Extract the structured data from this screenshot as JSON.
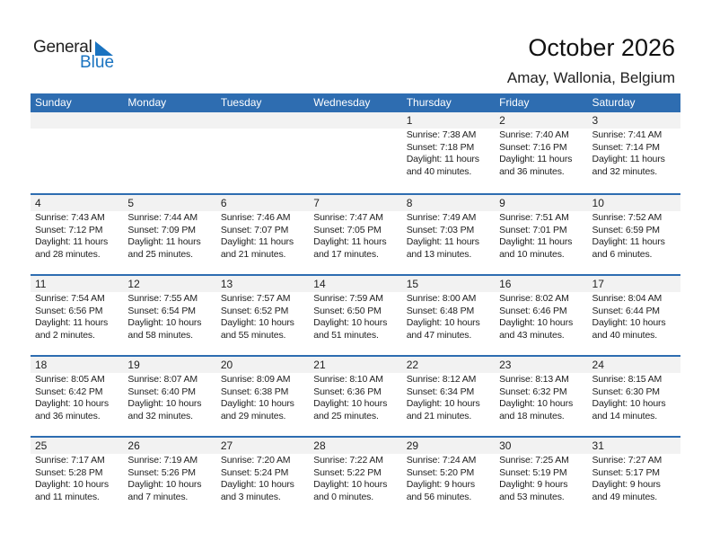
{
  "logo": {
    "general": "General",
    "blue": "Blue"
  },
  "title": "October 2026",
  "location": "Amay, Wallonia, Belgium",
  "colors": {
    "header": "#2e6db1",
    "accent": "#1a73c0",
    "day_row": "#f2f2f2"
  },
  "weekdays": [
    "Sunday",
    "Monday",
    "Tuesday",
    "Wednesday",
    "Thursday",
    "Friday",
    "Saturday"
  ],
  "weeks": [
    [
      null,
      null,
      null,
      null,
      {
        "day": "1",
        "sunrise": "Sunrise: 7:38 AM",
        "sunset": "Sunset: 7:18 PM",
        "daylight1": "Daylight: 11 hours",
        "daylight2": "and 40 minutes."
      },
      {
        "day": "2",
        "sunrise": "Sunrise: 7:40 AM",
        "sunset": "Sunset: 7:16 PM",
        "daylight1": "Daylight: 11 hours",
        "daylight2": "and 36 minutes."
      },
      {
        "day": "3",
        "sunrise": "Sunrise: 7:41 AM",
        "sunset": "Sunset: 7:14 PM",
        "daylight1": "Daylight: 11 hours",
        "daylight2": "and 32 minutes."
      }
    ],
    [
      {
        "day": "4",
        "sunrise": "Sunrise: 7:43 AM",
        "sunset": "Sunset: 7:12 PM",
        "daylight1": "Daylight: 11 hours",
        "daylight2": "and 28 minutes."
      },
      {
        "day": "5",
        "sunrise": "Sunrise: 7:44 AM",
        "sunset": "Sunset: 7:09 PM",
        "daylight1": "Daylight: 11 hours",
        "daylight2": "and 25 minutes."
      },
      {
        "day": "6",
        "sunrise": "Sunrise: 7:46 AM",
        "sunset": "Sunset: 7:07 PM",
        "daylight1": "Daylight: 11 hours",
        "daylight2": "and 21 minutes."
      },
      {
        "day": "7",
        "sunrise": "Sunrise: 7:47 AM",
        "sunset": "Sunset: 7:05 PM",
        "daylight1": "Daylight: 11 hours",
        "daylight2": "and 17 minutes."
      },
      {
        "day": "8",
        "sunrise": "Sunrise: 7:49 AM",
        "sunset": "Sunset: 7:03 PM",
        "daylight1": "Daylight: 11 hours",
        "daylight2": "and 13 minutes."
      },
      {
        "day": "9",
        "sunrise": "Sunrise: 7:51 AM",
        "sunset": "Sunset: 7:01 PM",
        "daylight1": "Daylight: 11 hours",
        "daylight2": "and 10 minutes."
      },
      {
        "day": "10",
        "sunrise": "Sunrise: 7:52 AM",
        "sunset": "Sunset: 6:59 PM",
        "daylight1": "Daylight: 11 hours",
        "daylight2": "and 6 minutes."
      }
    ],
    [
      {
        "day": "11",
        "sunrise": "Sunrise: 7:54 AM",
        "sunset": "Sunset: 6:56 PM",
        "daylight1": "Daylight: 11 hours",
        "daylight2": "and 2 minutes."
      },
      {
        "day": "12",
        "sunrise": "Sunrise: 7:55 AM",
        "sunset": "Sunset: 6:54 PM",
        "daylight1": "Daylight: 10 hours",
        "daylight2": "and 58 minutes."
      },
      {
        "day": "13",
        "sunrise": "Sunrise: 7:57 AM",
        "sunset": "Sunset: 6:52 PM",
        "daylight1": "Daylight: 10 hours",
        "daylight2": "and 55 minutes."
      },
      {
        "day": "14",
        "sunrise": "Sunrise: 7:59 AM",
        "sunset": "Sunset: 6:50 PM",
        "daylight1": "Daylight: 10 hours",
        "daylight2": "and 51 minutes."
      },
      {
        "day": "15",
        "sunrise": "Sunrise: 8:00 AM",
        "sunset": "Sunset: 6:48 PM",
        "daylight1": "Daylight: 10 hours",
        "daylight2": "and 47 minutes."
      },
      {
        "day": "16",
        "sunrise": "Sunrise: 8:02 AM",
        "sunset": "Sunset: 6:46 PM",
        "daylight1": "Daylight: 10 hours",
        "daylight2": "and 43 minutes."
      },
      {
        "day": "17",
        "sunrise": "Sunrise: 8:04 AM",
        "sunset": "Sunset: 6:44 PM",
        "daylight1": "Daylight: 10 hours",
        "daylight2": "and 40 minutes."
      }
    ],
    [
      {
        "day": "18",
        "sunrise": "Sunrise: 8:05 AM",
        "sunset": "Sunset: 6:42 PM",
        "daylight1": "Daylight: 10 hours",
        "daylight2": "and 36 minutes."
      },
      {
        "day": "19",
        "sunrise": "Sunrise: 8:07 AM",
        "sunset": "Sunset: 6:40 PM",
        "daylight1": "Daylight: 10 hours",
        "daylight2": "and 32 minutes."
      },
      {
        "day": "20",
        "sunrise": "Sunrise: 8:09 AM",
        "sunset": "Sunset: 6:38 PM",
        "daylight1": "Daylight: 10 hours",
        "daylight2": "and 29 minutes."
      },
      {
        "day": "21",
        "sunrise": "Sunrise: 8:10 AM",
        "sunset": "Sunset: 6:36 PM",
        "daylight1": "Daylight: 10 hours",
        "daylight2": "and 25 minutes."
      },
      {
        "day": "22",
        "sunrise": "Sunrise: 8:12 AM",
        "sunset": "Sunset: 6:34 PM",
        "daylight1": "Daylight: 10 hours",
        "daylight2": "and 21 minutes."
      },
      {
        "day": "23",
        "sunrise": "Sunrise: 8:13 AM",
        "sunset": "Sunset: 6:32 PM",
        "daylight1": "Daylight: 10 hours",
        "daylight2": "and 18 minutes."
      },
      {
        "day": "24",
        "sunrise": "Sunrise: 8:15 AM",
        "sunset": "Sunset: 6:30 PM",
        "daylight1": "Daylight: 10 hours",
        "daylight2": "and 14 minutes."
      }
    ],
    [
      {
        "day": "25",
        "sunrise": "Sunrise: 7:17 AM",
        "sunset": "Sunset: 5:28 PM",
        "daylight1": "Daylight: 10 hours",
        "daylight2": "and 11 minutes."
      },
      {
        "day": "26",
        "sunrise": "Sunrise: 7:19 AM",
        "sunset": "Sunset: 5:26 PM",
        "daylight1": "Daylight: 10 hours",
        "daylight2": "and 7 minutes."
      },
      {
        "day": "27",
        "sunrise": "Sunrise: 7:20 AM",
        "sunset": "Sunset: 5:24 PM",
        "daylight1": "Daylight: 10 hours",
        "daylight2": "and 3 minutes."
      },
      {
        "day": "28",
        "sunrise": "Sunrise: 7:22 AM",
        "sunset": "Sunset: 5:22 PM",
        "daylight1": "Daylight: 10 hours",
        "daylight2": "and 0 minutes."
      },
      {
        "day": "29",
        "sunrise": "Sunrise: 7:24 AM",
        "sunset": "Sunset: 5:20 PM",
        "daylight1": "Daylight: 9 hours",
        "daylight2": "and 56 minutes."
      },
      {
        "day": "30",
        "sunrise": "Sunrise: 7:25 AM",
        "sunset": "Sunset: 5:19 PM",
        "daylight1": "Daylight: 9 hours",
        "daylight2": "and 53 minutes."
      },
      {
        "day": "31",
        "sunrise": "Sunrise: 7:27 AM",
        "sunset": "Sunset: 5:17 PM",
        "daylight1": "Daylight: 9 hours",
        "daylight2": "and 49 minutes."
      }
    ]
  ]
}
